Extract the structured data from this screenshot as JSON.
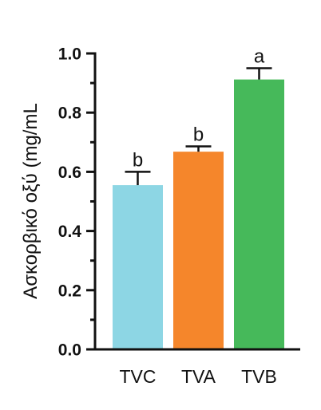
{
  "chart_data": {
    "type": "bar",
    "title": "",
    "xlabel": "",
    "ylabel": "Ασκορβικό οξύ (mg/mL",
    "ylim": [
      0,
      1.0
    ],
    "yticks": [
      "0.0",
      "0.2",
      "0.4",
      "0.6",
      "0.8",
      "1.0"
    ],
    "categories": [
      "TVC",
      "TVA",
      "TVB"
    ],
    "values": [
      0.555,
      0.668,
      0.912
    ],
    "errors": [
      0.045,
      0.018,
      0.038
    ],
    "significance": [
      "b",
      "b",
      "a"
    ],
    "colors": [
      "#8dd6e4",
      "#f5862b",
      "#46b95a"
    ],
    "grid": false,
    "legend": "none"
  }
}
